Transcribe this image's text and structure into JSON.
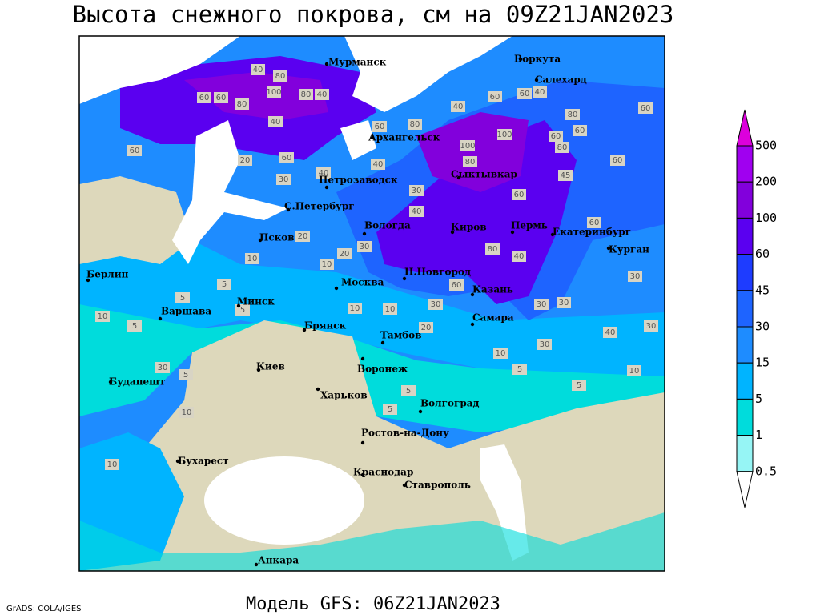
{
  "header": {
    "title": "Высота снежного покрова, см на 09Z21JAN2023"
  },
  "footer": {
    "credit": "GrADS: COLA/IGES",
    "model": "Модель GFS: 06Z21JAN2023"
  },
  "colorbar": {
    "levels": [
      500,
      200,
      100,
      60,
      45,
      30,
      15,
      5,
      1,
      0.5
    ],
    "colors": [
      "#dc00dc",
      "#a000f0",
      "#8200dc",
      "#5a00f0",
      "#1e3cff",
      "#1e64ff",
      "#1e8cff",
      "#00b4ff",
      "#00dcdc",
      "#96f5f5",
      "#ffffff"
    ]
  },
  "cities": [
    "Мурманск",
    "Воркута",
    "Салехард",
    "Архангельск",
    "Сыктывкар",
    "Петрозаводск",
    "С.Петербург",
    "Вологда",
    "Киров",
    "Пермь",
    "Екатеринбург",
    "Курган",
    "Псков",
    "Москва",
    "Н.Новгород",
    "Казань",
    "Берлин",
    "Варшава",
    "Минск",
    "Брянск",
    "Тамбов",
    "Самара",
    "Киев",
    "Воронеж",
    "Будапешт",
    "Харьков",
    "Волгоград",
    "Ростов-на-Дону",
    "Бухарест",
    "Краснодар",
    "Ставрополь",
    "Анкара"
  ],
  "contour_labels": [
    40,
    80,
    100,
    80,
    40,
    60,
    60,
    80,
    40,
    60,
    20,
    60,
    30,
    40,
    40,
    60,
    80,
    40,
    60,
    60,
    40,
    80,
    60,
    60,
    80,
    100,
    100,
    80,
    45,
    60,
    60,
    60,
    30,
    40,
    80,
    40,
    60,
    20,
    20,
    10,
    30,
    10,
    5,
    5,
    5,
    10,
    5,
    30,
    10,
    10,
    5,
    10,
    10,
    30,
    20,
    30,
    30,
    30,
    10,
    5,
    5,
    10,
    30,
    40,
    30,
    5,
    5,
    60
  ]
}
